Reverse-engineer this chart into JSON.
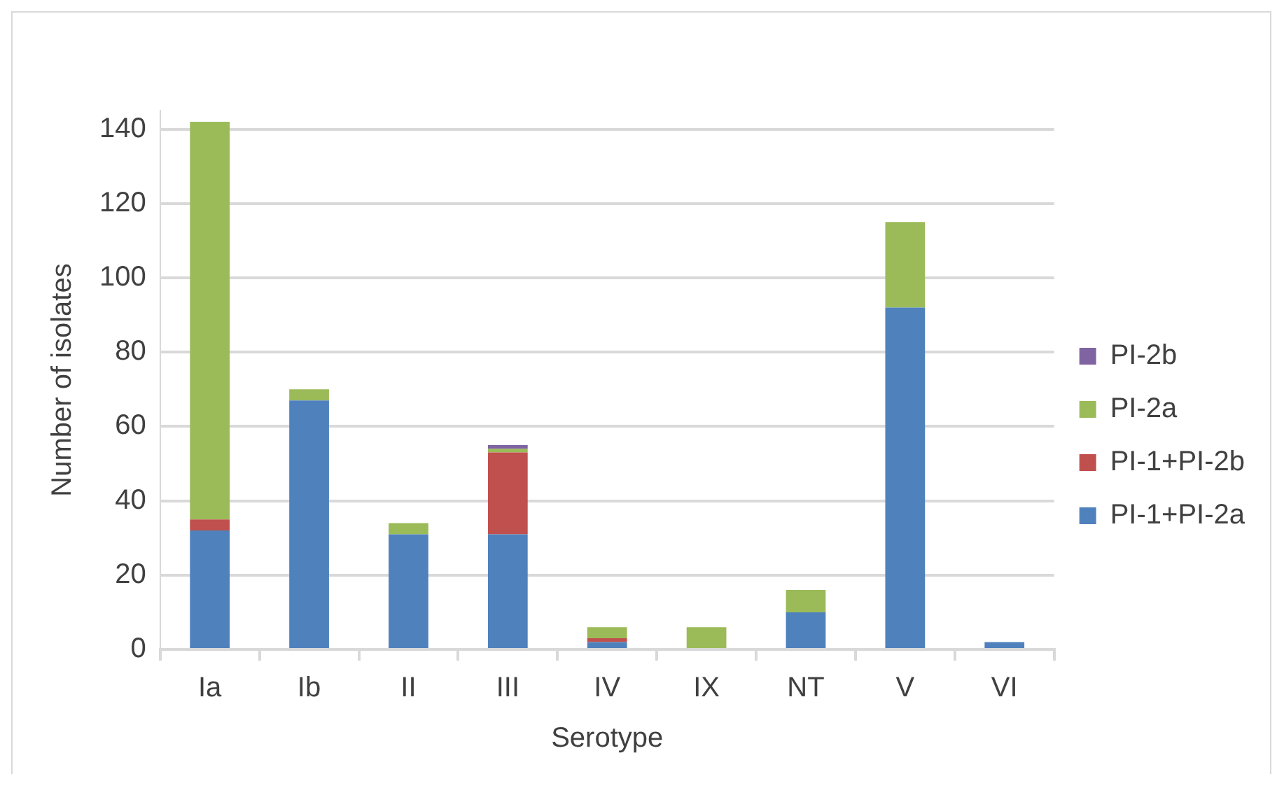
{
  "chart_data": {
    "type": "bar",
    "stacked": true,
    "xlabel": "Serotype",
    "ylabel": "Number of isolates",
    "categories": [
      "Ia",
      "Ib",
      "II",
      "III",
      "IV",
      "IX",
      "NT",
      "V",
      "VI"
    ],
    "series": [
      {
        "name": "PI-1+PI-2a",
        "color": "#4f81bd",
        "values": [
          32,
          67,
          31,
          31,
          2,
          0,
          10,
          92,
          2
        ]
      },
      {
        "name": "PI-1+PI-2b",
        "color": "#c0504d",
        "values": [
          3,
          0,
          0,
          22,
          1,
          0,
          0,
          0,
          0
        ]
      },
      {
        "name": "PI-2a",
        "color": "#9bbb59",
        "values": [
          107,
          3,
          3,
          1,
          3,
          6,
          6,
          23,
          0
        ]
      },
      {
        "name": "PI-2b",
        "color": "#8064a2",
        "values": [
          0,
          0,
          0,
          1,
          0,
          0,
          0,
          0,
          0
        ]
      }
    ],
    "ylim": [
      0,
      145
    ],
    "yticks": [
      0,
      20,
      40,
      60,
      80,
      100,
      120,
      140
    ],
    "grid": "y",
    "legend": "right"
  }
}
